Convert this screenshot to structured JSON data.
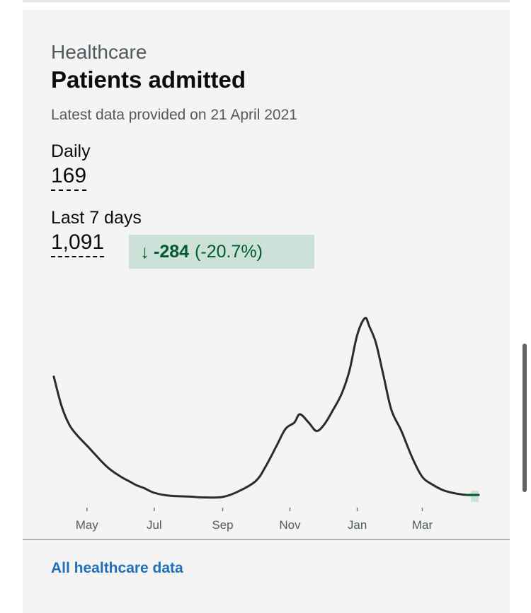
{
  "card": {
    "category": "Healthcare",
    "title": "Patients admitted",
    "latest": "Latest data provided on 21 April 2021",
    "daily_label": "Daily",
    "daily_value": "169",
    "week_label": "Last 7 days",
    "week_value": "1,091",
    "change_value": "-284",
    "change_percent": "(-20.7%)",
    "link_text": "All healthcare data"
  },
  "colors": {
    "line": "#2b2b2b",
    "badge_bg": "#cce2d8",
    "badge_text": "#005a30",
    "link": "#1d70b8",
    "highlight": "#cce2d8"
  },
  "chart_data": {
    "type": "line",
    "x_ticks": [
      "May",
      "Jul",
      "Sep",
      "Nov",
      "Jan",
      "Mar"
    ],
    "x": [
      "2020-04-01",
      "2020-04-08",
      "2020-04-15",
      "2020-04-22",
      "2020-05-01",
      "2020-05-08",
      "2020-05-15",
      "2020-05-22",
      "2020-06-01",
      "2020-06-08",
      "2020-06-15",
      "2020-06-22",
      "2020-07-01",
      "2020-07-15",
      "2020-08-01",
      "2020-08-15",
      "2020-09-01",
      "2020-09-15",
      "2020-10-01",
      "2020-10-10",
      "2020-10-20",
      "2020-10-28",
      "2020-11-05",
      "2020-11-10",
      "2020-11-18",
      "2020-11-25",
      "2020-12-02",
      "2020-12-10",
      "2020-12-18",
      "2020-12-25",
      "2021-01-01",
      "2021-01-08",
      "2021-01-12",
      "2021-01-18",
      "2021-01-25",
      "2021-02-01",
      "2021-02-10",
      "2021-02-20",
      "2021-03-01",
      "2021-03-10",
      "2021-03-20",
      "2021-04-01",
      "2021-04-10",
      "2021-04-21"
    ],
    "y": [
      3000,
      2300,
      1850,
      1600,
      1350,
      1150,
      950,
      780,
      600,
      500,
      400,
      330,
      220,
      150,
      130,
      110,
      120,
      250,
      500,
      850,
      1350,
      1750,
      1900,
      2100,
      1900,
      1700,
      1850,
      2200,
      2600,
      3150,
      4000,
      4400,
      4200,
      3800,
      3000,
      2200,
      1700,
      1050,
      600,
      420,
      280,
      200,
      170,
      169
    ],
    "y_range": [
      0,
      4500
    ],
    "grid": false,
    "legend": "none"
  }
}
